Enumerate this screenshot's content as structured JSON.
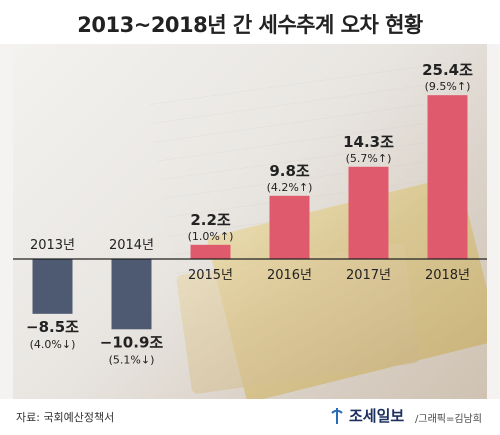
{
  "title": "2013~2018년 간 세수추계 오차 현황",
  "footer": {
    "source": "자료: 국회예산정책서",
    "brand": "조세일보",
    "credit": "/그래픽=김남희"
  },
  "colors": {
    "positive": "#e05a6e",
    "negative": "#4e5a72",
    "text": "#222222"
  },
  "chart_data": {
    "type": "bar",
    "title": "2013~2018년 간 세수추계 오차 현황",
    "categories": [
      "2013년",
      "2014년",
      "2015년",
      "2016년",
      "2017년",
      "2018년"
    ],
    "values": [
      -8.5,
      -10.9,
      2.2,
      9.8,
      14.3,
      25.4
    ],
    "value_labels": [
      "−8.5조",
      "−10.9조",
      "2.2조",
      "9.8조",
      "14.3조",
      "25.4조"
    ],
    "sub_labels": [
      "(4.0%↓)",
      "(5.1%↓)",
      "(1.0%↑)",
      "(4.2%↑)",
      "(5.7%↑)",
      "(9.5%↑)"
    ],
    "ylim": [
      -11,
      26
    ],
    "grid": false,
    "legend": "none"
  }
}
